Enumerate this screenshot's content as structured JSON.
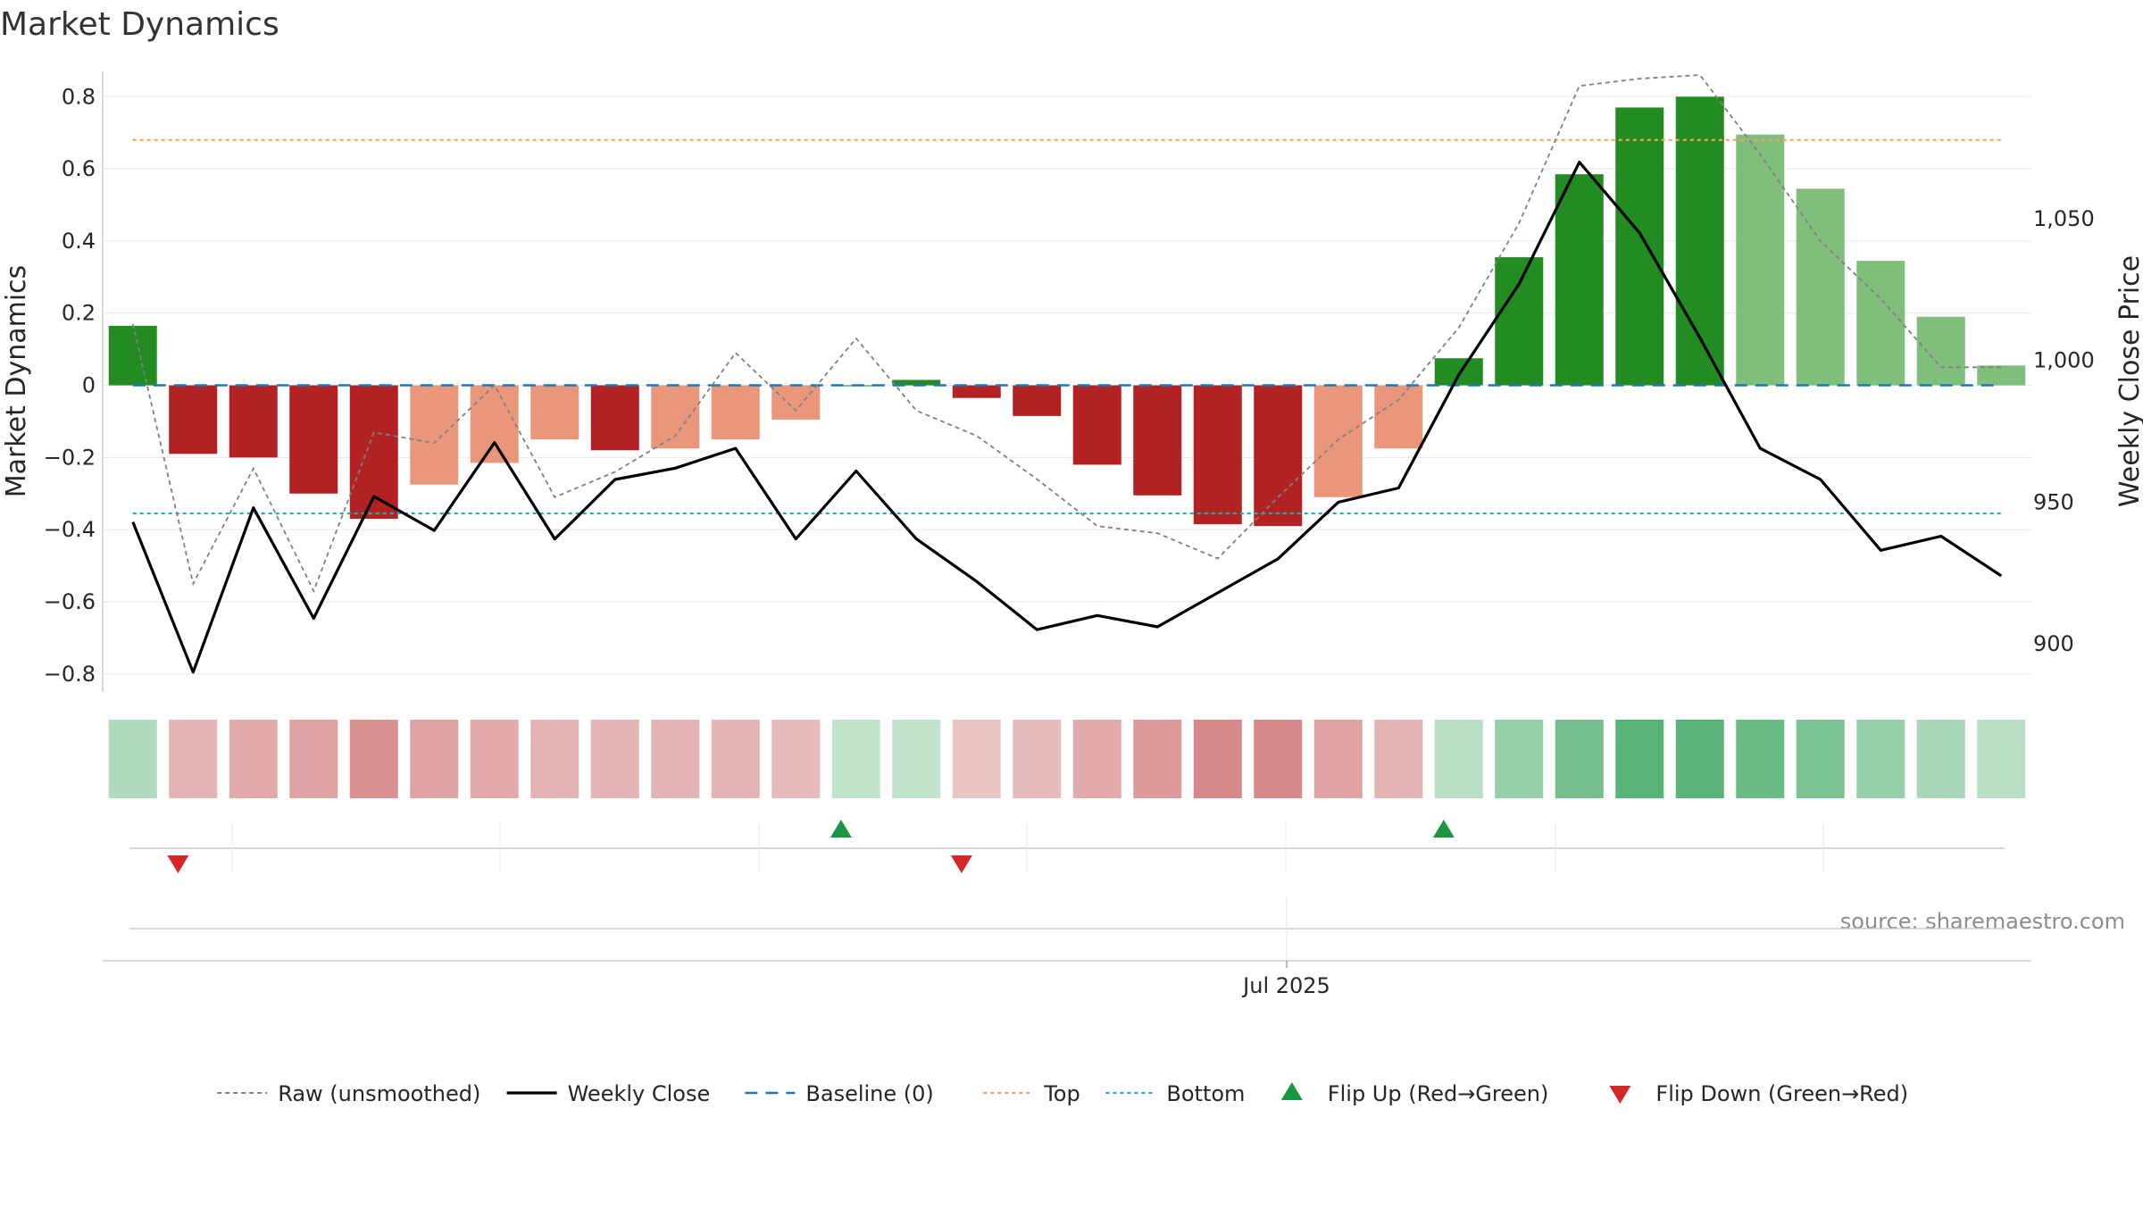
{
  "chart_data": {
    "type": "bar",
    "title": "Market Dynamics",
    "ylabel_left": "Market Dynamics",
    "ylabel_right": "Weekly Close Price",
    "source": "source: sharemaestro.com",
    "xlabel_ticks": [
      "Jul 2025"
    ],
    "left_ticks": [
      "0.8",
      "0.6",
      "0.4",
      "0.2",
      "0",
      "−0.2",
      "−0.4",
      "−0.6",
      "−0.8"
    ],
    "left_tick_values": [
      0.8,
      0.6,
      0.4,
      0.2,
      0,
      -0.2,
      -0.4,
      -0.6,
      -0.8
    ],
    "right_ticks": [
      "1,050",
      "1,000",
      "950",
      "900"
    ],
    "right_tick_values": [
      1050,
      1000,
      950,
      900
    ],
    "ylim_left": [
      -0.85,
      0.87
    ],
    "ylim_right": [
      883,
      1102
    ],
    "bar_values": [
      0.165,
      -0.19,
      -0.2,
      -0.3,
      -0.37,
      -0.275,
      -0.215,
      -0.15,
      -0.18,
      -0.175,
      -0.15,
      -0.095,
      0.0,
      0.015,
      -0.035,
      -0.085,
      -0.22,
      -0.305,
      -0.385,
      -0.39,
      -0.31,
      -0.175,
      0.075,
      0.355,
      0.585,
      0.77,
      0.8,
      0.695,
      0.545,
      0.345,
      0.19,
      0.055
    ],
    "bar_colors": [
      "#228b22",
      "#b22222",
      "#b22222",
      "#b22222",
      "#b22222",
      "#e9967a",
      "#e9967a",
      "#e9967a",
      "#b22222",
      "#e9967a",
      "#e9967a",
      "#e9967a",
      "#228b22",
      "#228b22",
      "#b22222",
      "#b22222",
      "#b22222",
      "#b22222",
      "#b22222",
      "#b22222",
      "#e9967a",
      "#e9967a",
      "#228b22",
      "#228b22",
      "#228b22",
      "#228b22",
      "#228b22",
      "#7fbf7b",
      "#7fbf7b",
      "#7fbf7b",
      "#7fbf7b",
      "#7fbf7b"
    ],
    "raw_values": [
      0.17,
      -0.55,
      -0.23,
      -0.57,
      -0.13,
      -0.16,
      0.0,
      -0.31,
      -0.24,
      -0.14,
      0.09,
      -0.07,
      0.13,
      -0.07,
      -0.14,
      -0.26,
      -0.39,
      -0.41,
      -0.48,
      -0.31,
      -0.15,
      -0.04,
      0.16,
      0.45,
      0.83,
      0.85,
      0.86,
      0.64,
      0.4,
      0.24,
      0.05,
      0.05
    ],
    "close_values": [
      943,
      890,
      948,
      909,
      952,
      940,
      971,
      937,
      958,
      962,
      969,
      937,
      961,
      937,
      922,
      905,
      910,
      906,
      918,
      930,
      950,
      955,
      995,
      1027,
      1070,
      1045,
      1008,
      969,
      958,
      933,
      938,
      924
    ],
    "top_level": 0.68,
    "bottom_level": -0.355,
    "baseline_level": 0,
    "heat_values": [
      0.3,
      -0.3,
      -0.35,
      -0.4,
      -0.5,
      -0.4,
      -0.35,
      -0.3,
      -0.3,
      -0.3,
      -0.3,
      -0.25,
      0.2,
      0.2,
      -0.2,
      -0.25,
      -0.35,
      -0.45,
      -0.55,
      -0.55,
      -0.4,
      -0.3,
      0.25,
      0.45,
      0.65,
      0.8,
      0.8,
      0.7,
      0.6,
      0.45,
      0.35,
      0.25
    ],
    "flip_up_indices": [
      12,
      22
    ],
    "flip_down_indices": [
      1,
      14
    ],
    "legend": [
      {
        "label": "Raw (unsmoothed)",
        "kind": "dotted-gray"
      },
      {
        "label": "Weekly Close",
        "kind": "solid-black"
      },
      {
        "label": "Baseline (0)",
        "kind": "dashed-blue"
      },
      {
        "label": "Top",
        "kind": "dotted-orange"
      },
      {
        "label": "Bottom",
        "kind": "dotted-cyan"
      },
      {
        "label": "Flip Up (Red→Green)",
        "kind": "triangle-up"
      },
      {
        "label": "Flip Down (Green→Red)",
        "kind": "triangle-down"
      }
    ],
    "colors": {
      "raw": "#808080",
      "close": "#000000",
      "baseline": "#1f77b4",
      "top": "#f4a460",
      "bottom": "#20b2aa",
      "flip_up": "#1a9641",
      "flip_down": "#d62728"
    }
  }
}
